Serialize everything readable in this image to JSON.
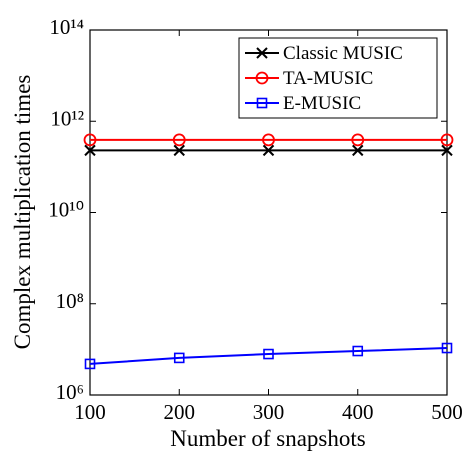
{
  "chart_data": {
    "type": "line",
    "x_label": "Number of snapshots",
    "y_label": "Complex multiplication times",
    "x": [
      100,
      200,
      300,
      400,
      500
    ],
    "xlim": [
      100,
      500
    ],
    "xticks": [
      100,
      200,
      300,
      400,
      500
    ],
    "ylim": [
      1000000,
      100000000000000
    ],
    "yticks": [
      {
        "value": 1000000,
        "label": "10⁶"
      },
      {
        "value": 100000000,
        "label": "10⁸"
      },
      {
        "value": 10000000000,
        "label": "10¹⁰"
      },
      {
        "value": 1000000000000,
        "label": "10¹²"
      },
      {
        "value": 100000000000000,
        "label": "10¹⁴"
      }
    ],
    "y_scale": "log",
    "legend_position": "upper right",
    "series": [
      {
        "name": "Classic MUSIC",
        "color": "#000000",
        "marker": "x",
        "values": [
          230000000000,
          230000000000,
          230000000000,
          230000000000,
          230000000000
        ]
      },
      {
        "name": "TA-MUSIC",
        "color": "#ff0000",
        "marker": "o",
        "values": [
          390000000000,
          390000000000,
          390000000000,
          390000000000,
          390000000000
        ]
      },
      {
        "name": "E-MUSIC",
        "color": "#0000ff",
        "marker": "s",
        "values": [
          4800000,
          6500000,
          7900000,
          9200000,
          10700000
        ]
      }
    ]
  }
}
